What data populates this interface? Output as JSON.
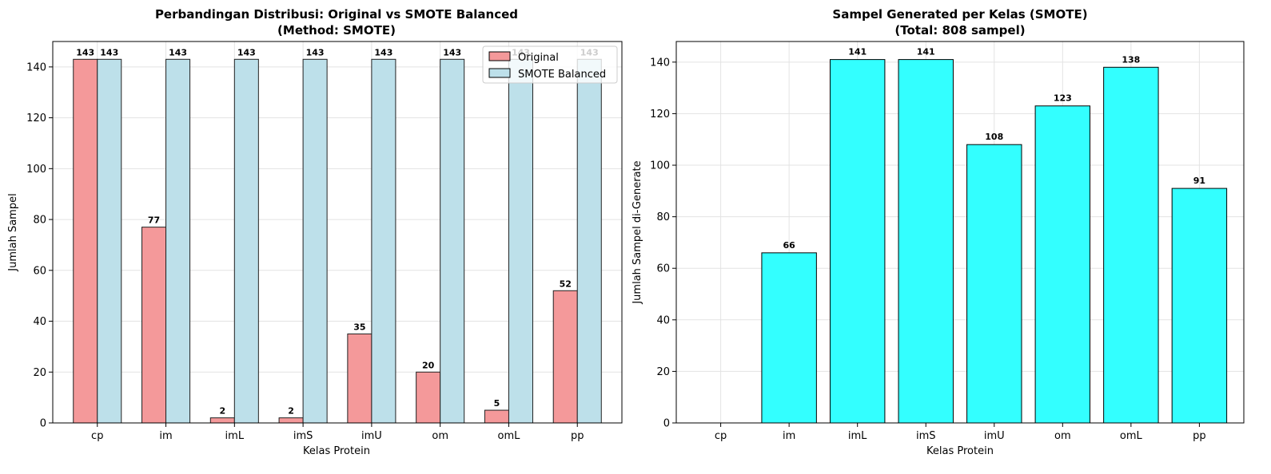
{
  "chart_data": [
    {
      "type": "bar",
      "title": "Perbandingan Distribusi: Original vs SMOTE Balanced",
      "subtitle": "(Method: SMOTE)",
      "xlabel": "Kelas Protein",
      "ylabel": "Jumlah Sampel",
      "categories": [
        "cp",
        "im",
        "imL",
        "imS",
        "imU",
        "om",
        "omL",
        "pp"
      ],
      "ylim": [
        0,
        150
      ],
      "yticks": [
        0,
        20,
        40,
        60,
        80,
        100,
        120,
        140
      ],
      "grid": true,
      "legend": "top-right",
      "series": [
        {
          "name": "Original",
          "color": "#f4999a",
          "values": [
            143,
            77,
            2,
            2,
            35,
            20,
            5,
            52
          ]
        },
        {
          "name": "SMOTE Balanced",
          "color": "#bde0ea",
          "values": [
            143,
            143,
            143,
            143,
            143,
            143,
            143,
            143
          ]
        }
      ]
    },
    {
      "type": "bar",
      "title": "Sampel Generated per Kelas (SMOTE)",
      "subtitle": "(Total: 808 sampel)",
      "xlabel": "Kelas Protein",
      "ylabel": "Jumlah Sampel di-Generate",
      "categories": [
        "cp",
        "im",
        "imL",
        "imS",
        "imU",
        "om",
        "omL",
        "pp"
      ],
      "ylim": [
        0,
        148
      ],
      "yticks": [
        0,
        20,
        40,
        60,
        80,
        100,
        120,
        140
      ],
      "grid": true,
      "color": "#33ffff",
      "values": [
        0,
        66,
        141,
        141,
        108,
        123,
        138,
        91
      ]
    }
  ]
}
